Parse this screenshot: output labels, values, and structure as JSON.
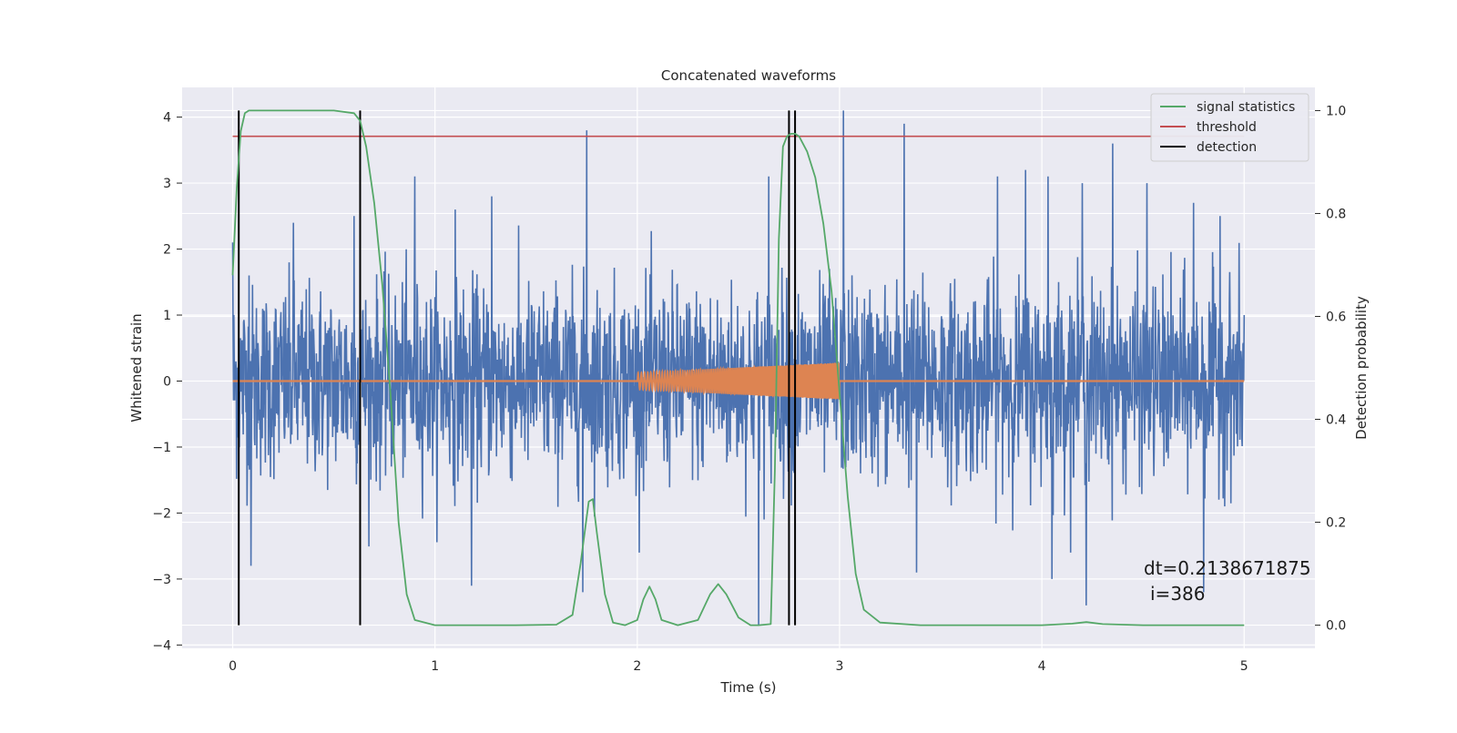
{
  "chart_data": {
    "type": "line",
    "title": "Concatenated waveforms",
    "xlabel": "Time (s)",
    "ylabel_left": "Whitened strain",
    "ylabel_right": "Detection probability",
    "xlim": [
      -0.25,
      5.35
    ],
    "ylim_left": [
      -4.05,
      4.45
    ],
    "ylim_right": [
      -0.045,
      1.045
    ],
    "x_ticks": [
      "0",
      "1",
      "2",
      "3",
      "4",
      "5"
    ],
    "x_tick_values": [
      0,
      1,
      2,
      3,
      4,
      5
    ],
    "y_left_ticks": [
      "4",
      "3",
      "2",
      "1",
      "0",
      "−1",
      "−2",
      "−3",
      "−4"
    ],
    "y_left_tick_values": [
      4,
      3,
      2,
      1,
      0,
      -1,
      -2,
      -3,
      -4
    ],
    "y_right_ticks": [
      "1.0",
      "0.8",
      "0.6",
      "0.4",
      "0.2",
      "0.0"
    ],
    "y_right_tick_values": [
      1.0,
      0.8,
      0.6,
      0.4,
      0.2,
      0.0
    ],
    "grid": true,
    "legend_position": "top-right",
    "series": [
      {
        "name": "signal statistics",
        "color": "#55a868",
        "axis": "right",
        "x": [
          0.0,
          0.02,
          0.04,
          0.06,
          0.08,
          0.1,
          0.2,
          0.3,
          0.4,
          0.5,
          0.6,
          0.63,
          0.66,
          0.7,
          0.74,
          0.78,
          0.82,
          0.86,
          0.9,
          1.0,
          1.2,
          1.4,
          1.6,
          1.68,
          1.72,
          1.76,
          1.78,
          1.8,
          1.84,
          1.88,
          1.94,
          2.0,
          2.03,
          2.06,
          2.09,
          2.12,
          2.2,
          2.3,
          2.36,
          2.4,
          2.44,
          2.5,
          2.56,
          2.6,
          2.66,
          2.68,
          2.7,
          2.72,
          2.74,
          2.76,
          2.78,
          2.8,
          2.84,
          2.88,
          2.92,
          2.96,
          3.0,
          3.04,
          3.08,
          3.12,
          3.2,
          3.4,
          3.6,
          3.8,
          4.0,
          4.15,
          4.22,
          4.3,
          4.5,
          4.75,
          5.0
        ],
        "y": [
          0.68,
          0.85,
          0.96,
          0.995,
          1.0,
          1.0,
          1.0,
          1.0,
          1.0,
          1.0,
          0.995,
          0.98,
          0.93,
          0.82,
          0.66,
          0.45,
          0.2,
          0.06,
          0.01,
          0.0,
          0.0,
          0.0,
          0.001,
          0.02,
          0.12,
          0.24,
          0.245,
          0.18,
          0.06,
          0.005,
          0.0,
          0.01,
          0.05,
          0.075,
          0.05,
          0.01,
          0.0,
          0.01,
          0.06,
          0.08,
          0.06,
          0.015,
          0.0,
          0.0,
          0.002,
          0.3,
          0.75,
          0.93,
          0.95,
          0.955,
          0.955,
          0.95,
          0.92,
          0.87,
          0.78,
          0.65,
          0.45,
          0.25,
          0.1,
          0.03,
          0.005,
          0.0,
          0.0,
          0.0,
          0.0,
          0.003,
          0.006,
          0.002,
          0.0,
          0.0,
          0.0
        ]
      },
      {
        "name": "threshold",
        "color": "#c44e52",
        "axis": "right",
        "x": [
          0.0,
          5.0
        ],
        "y": [
          0.95,
          0.95
        ]
      },
      {
        "name": "detection",
        "color": "#000000",
        "axis": "right",
        "type": "vlines",
        "x": [
          0.03,
          0.63,
          2.75,
          2.78
        ],
        "ymin": 0.0,
        "ymax": 1.0
      },
      {
        "name": "",
        "color": "#4c72b0",
        "axis": "left",
        "type": "noise",
        "description_range": [
          -4.0,
          4.1
        ],
        "x_range": [
          0.0,
          5.0
        ],
        "std": 0.72,
        "max_peaks": [
          [
            0.0,
            2.1
          ],
          [
            0.08,
            1.6
          ],
          [
            0.09,
            -2.8
          ],
          [
            0.3,
            2.4
          ],
          [
            0.6,
            2.5
          ],
          [
            0.9,
            3.1
          ],
          [
            1.1,
            2.6
          ],
          [
            1.18,
            -3.1
          ],
          [
            1.28,
            2.8
          ],
          [
            1.75,
            3.8
          ],
          [
            1.73,
            -3.2
          ],
          [
            2.6,
            -3.7
          ],
          [
            2.65,
            3.1
          ],
          [
            3.02,
            4.1
          ],
          [
            3.32,
            3.9
          ],
          [
            3.38,
            -2.9
          ],
          [
            3.78,
            3.1
          ],
          [
            3.92,
            3.2
          ],
          [
            4.03,
            3.1
          ],
          [
            4.2,
            3.0
          ],
          [
            4.05,
            -3.0
          ],
          [
            4.22,
            -3.4
          ],
          [
            4.35,
            3.6
          ],
          [
            4.52,
            3.0
          ],
          [
            4.75,
            2.7
          ],
          [
            4.8,
            -3.2
          ],
          [
            4.88,
            2.5
          ],
          [
            5.0,
            1.0
          ]
        ]
      },
      {
        "name": "",
        "color": "#dd8452",
        "axis": "left",
        "type": "chirp",
        "x_range": [
          2.0,
          3.0
        ],
        "amplitude_start": 0.13,
        "amplitude_end": 0.28,
        "baseline": 0.0
      }
    ],
    "annotation": {
      "line1": "dt=0.2138671875",
      "line2": "i=386"
    }
  },
  "legend": {
    "items": [
      {
        "label": "signal statistics",
        "color": "#55a868"
      },
      {
        "label": "threshold",
        "color": "#c44e52"
      },
      {
        "label": "detection",
        "color": "#000000"
      }
    ]
  },
  "colors": {
    "plot_background": "#eaeaf2",
    "grid": "#ffffff",
    "strain": "#4c72b0",
    "chirp": "#dd8452"
  }
}
